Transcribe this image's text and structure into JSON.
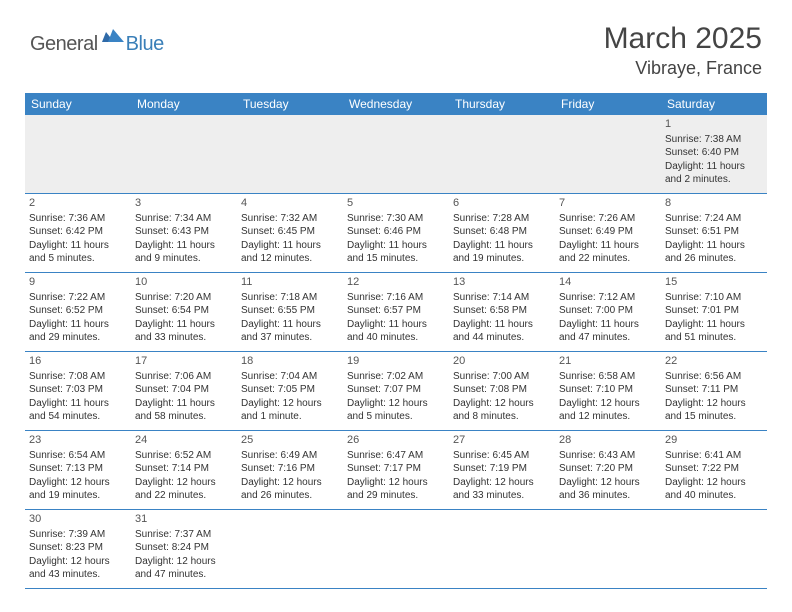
{
  "colors": {
    "header_blue": "#3a83c4",
    "rule_blue": "#3a83c4",
    "text": "#333333",
    "muted": "#555555",
    "bg": "#ffffff",
    "shade": "#eeeeee",
    "logo_gray": "#555555",
    "logo_blue": "#3a7fb8"
  },
  "logo": {
    "part1": "General",
    "part2": "Blue"
  },
  "title": "March 2025",
  "location": "Vibraye, France",
  "weekdays": [
    "Sunday",
    "Monday",
    "Tuesday",
    "Wednesday",
    "Thursday",
    "Friday",
    "Saturday"
  ],
  "weeks": [
    [
      {
        "n": "",
        "sunrise": "",
        "sunset": "",
        "daylight": ""
      },
      {
        "n": "",
        "sunrise": "",
        "sunset": "",
        "daylight": ""
      },
      {
        "n": "",
        "sunrise": "",
        "sunset": "",
        "daylight": ""
      },
      {
        "n": "",
        "sunrise": "",
        "sunset": "",
        "daylight": ""
      },
      {
        "n": "",
        "sunrise": "",
        "sunset": "",
        "daylight": ""
      },
      {
        "n": "",
        "sunrise": "",
        "sunset": "",
        "daylight": ""
      },
      {
        "n": "1",
        "sunrise": "Sunrise: 7:38 AM",
        "sunset": "Sunset: 6:40 PM",
        "daylight": "Daylight: 11 hours and 2 minutes."
      }
    ],
    [
      {
        "n": "2",
        "sunrise": "Sunrise: 7:36 AM",
        "sunset": "Sunset: 6:42 PM",
        "daylight": "Daylight: 11 hours and 5 minutes."
      },
      {
        "n": "3",
        "sunrise": "Sunrise: 7:34 AM",
        "sunset": "Sunset: 6:43 PM",
        "daylight": "Daylight: 11 hours and 9 minutes."
      },
      {
        "n": "4",
        "sunrise": "Sunrise: 7:32 AM",
        "sunset": "Sunset: 6:45 PM",
        "daylight": "Daylight: 11 hours and 12 minutes."
      },
      {
        "n": "5",
        "sunrise": "Sunrise: 7:30 AM",
        "sunset": "Sunset: 6:46 PM",
        "daylight": "Daylight: 11 hours and 15 minutes."
      },
      {
        "n": "6",
        "sunrise": "Sunrise: 7:28 AM",
        "sunset": "Sunset: 6:48 PM",
        "daylight": "Daylight: 11 hours and 19 minutes."
      },
      {
        "n": "7",
        "sunrise": "Sunrise: 7:26 AM",
        "sunset": "Sunset: 6:49 PM",
        "daylight": "Daylight: 11 hours and 22 minutes."
      },
      {
        "n": "8",
        "sunrise": "Sunrise: 7:24 AM",
        "sunset": "Sunset: 6:51 PM",
        "daylight": "Daylight: 11 hours and 26 minutes."
      }
    ],
    [
      {
        "n": "9",
        "sunrise": "Sunrise: 7:22 AM",
        "sunset": "Sunset: 6:52 PM",
        "daylight": "Daylight: 11 hours and 29 minutes."
      },
      {
        "n": "10",
        "sunrise": "Sunrise: 7:20 AM",
        "sunset": "Sunset: 6:54 PM",
        "daylight": "Daylight: 11 hours and 33 minutes."
      },
      {
        "n": "11",
        "sunrise": "Sunrise: 7:18 AM",
        "sunset": "Sunset: 6:55 PM",
        "daylight": "Daylight: 11 hours and 37 minutes."
      },
      {
        "n": "12",
        "sunrise": "Sunrise: 7:16 AM",
        "sunset": "Sunset: 6:57 PM",
        "daylight": "Daylight: 11 hours and 40 minutes."
      },
      {
        "n": "13",
        "sunrise": "Sunrise: 7:14 AM",
        "sunset": "Sunset: 6:58 PM",
        "daylight": "Daylight: 11 hours and 44 minutes."
      },
      {
        "n": "14",
        "sunrise": "Sunrise: 7:12 AM",
        "sunset": "Sunset: 7:00 PM",
        "daylight": "Daylight: 11 hours and 47 minutes."
      },
      {
        "n": "15",
        "sunrise": "Sunrise: 7:10 AM",
        "sunset": "Sunset: 7:01 PM",
        "daylight": "Daylight: 11 hours and 51 minutes."
      }
    ],
    [
      {
        "n": "16",
        "sunrise": "Sunrise: 7:08 AM",
        "sunset": "Sunset: 7:03 PM",
        "daylight": "Daylight: 11 hours and 54 minutes."
      },
      {
        "n": "17",
        "sunrise": "Sunrise: 7:06 AM",
        "sunset": "Sunset: 7:04 PM",
        "daylight": "Daylight: 11 hours and 58 minutes."
      },
      {
        "n": "18",
        "sunrise": "Sunrise: 7:04 AM",
        "sunset": "Sunset: 7:05 PM",
        "daylight": "Daylight: 12 hours and 1 minute."
      },
      {
        "n": "19",
        "sunrise": "Sunrise: 7:02 AM",
        "sunset": "Sunset: 7:07 PM",
        "daylight": "Daylight: 12 hours and 5 minutes."
      },
      {
        "n": "20",
        "sunrise": "Sunrise: 7:00 AM",
        "sunset": "Sunset: 7:08 PM",
        "daylight": "Daylight: 12 hours and 8 minutes."
      },
      {
        "n": "21",
        "sunrise": "Sunrise: 6:58 AM",
        "sunset": "Sunset: 7:10 PM",
        "daylight": "Daylight: 12 hours and 12 minutes."
      },
      {
        "n": "22",
        "sunrise": "Sunrise: 6:56 AM",
        "sunset": "Sunset: 7:11 PM",
        "daylight": "Daylight: 12 hours and 15 minutes."
      }
    ],
    [
      {
        "n": "23",
        "sunrise": "Sunrise: 6:54 AM",
        "sunset": "Sunset: 7:13 PM",
        "daylight": "Daylight: 12 hours and 19 minutes."
      },
      {
        "n": "24",
        "sunrise": "Sunrise: 6:52 AM",
        "sunset": "Sunset: 7:14 PM",
        "daylight": "Daylight: 12 hours and 22 minutes."
      },
      {
        "n": "25",
        "sunrise": "Sunrise: 6:49 AM",
        "sunset": "Sunset: 7:16 PM",
        "daylight": "Daylight: 12 hours and 26 minutes."
      },
      {
        "n": "26",
        "sunrise": "Sunrise: 6:47 AM",
        "sunset": "Sunset: 7:17 PM",
        "daylight": "Daylight: 12 hours and 29 minutes."
      },
      {
        "n": "27",
        "sunrise": "Sunrise: 6:45 AM",
        "sunset": "Sunset: 7:19 PM",
        "daylight": "Daylight: 12 hours and 33 minutes."
      },
      {
        "n": "28",
        "sunrise": "Sunrise: 6:43 AM",
        "sunset": "Sunset: 7:20 PM",
        "daylight": "Daylight: 12 hours and 36 minutes."
      },
      {
        "n": "29",
        "sunrise": "Sunrise: 6:41 AM",
        "sunset": "Sunset: 7:22 PM",
        "daylight": "Daylight: 12 hours and 40 minutes."
      }
    ],
    [
      {
        "n": "30",
        "sunrise": "Sunrise: 7:39 AM",
        "sunset": "Sunset: 8:23 PM",
        "daylight": "Daylight: 12 hours and 43 minutes."
      },
      {
        "n": "31",
        "sunrise": "Sunrise: 7:37 AM",
        "sunset": "Sunset: 8:24 PM",
        "daylight": "Daylight: 12 hours and 47 minutes."
      },
      {
        "n": "",
        "sunrise": "",
        "sunset": "",
        "daylight": ""
      },
      {
        "n": "",
        "sunrise": "",
        "sunset": "",
        "daylight": ""
      },
      {
        "n": "",
        "sunrise": "",
        "sunset": "",
        "daylight": ""
      },
      {
        "n": "",
        "sunrise": "",
        "sunset": "",
        "daylight": ""
      },
      {
        "n": "",
        "sunrise": "",
        "sunset": "",
        "daylight": ""
      }
    ]
  ]
}
